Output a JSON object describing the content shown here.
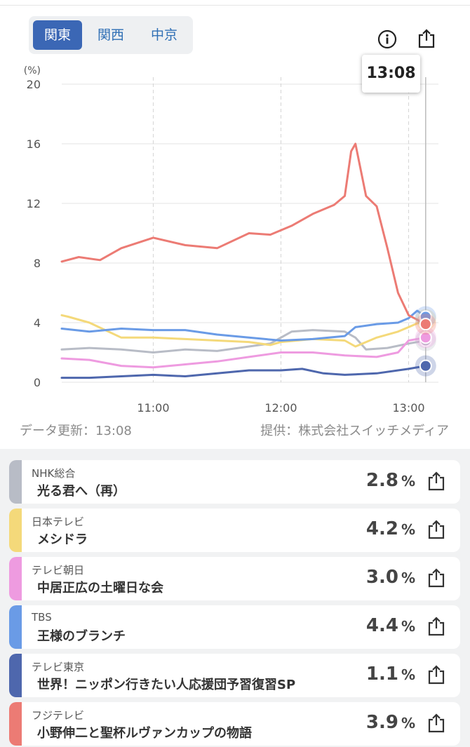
{
  "region_tabs": [
    {
      "label": "関東",
      "active": true
    },
    {
      "label": "関西",
      "active": false
    },
    {
      "label": "中京",
      "active": false
    }
  ],
  "icons": {
    "info": "info-icon",
    "share": "share-icon"
  },
  "tooltip_time": "13:08",
  "footer": {
    "updated": "データ更新：13:08",
    "provider": "提供：株式会社スイッチメディア"
  },
  "chart_data": {
    "type": "line",
    "ylabel": "(%)",
    "ylim": [
      0,
      20
    ],
    "yticks": [
      "0",
      "4",
      "8",
      "12",
      "16",
      "20"
    ],
    "xlim": [
      "10:17",
      "13:14"
    ],
    "xticks": [
      "11:00",
      "12:00",
      "13:00"
    ],
    "grid": true,
    "cursor_time": "13:08",
    "series": [
      {
        "name": "NHK総合",
        "color": "#b8bcc6",
        "x": [
          "10:17",
          "10:30",
          "10:45",
          "11:00",
          "11:15",
          "11:30",
          "11:45",
          "11:55",
          "12:05",
          "12:15",
          "12:30",
          "12:35",
          "12:40",
          "12:50",
          "13:00",
          "13:08"
        ],
        "y": [
          2.2,
          2.3,
          2.2,
          2.0,
          2.2,
          2.1,
          2.4,
          2.6,
          3.4,
          3.5,
          3.4,
          3.0,
          2.2,
          2.3,
          2.6,
          2.8
        ]
      },
      {
        "name": "日本テレビ",
        "color": "#f4d97a",
        "x": [
          "10:17",
          "10:20",
          "10:30",
          "10:45",
          "11:00",
          "11:15",
          "11:30",
          "11:45",
          "11:55",
          "12:00",
          "12:15",
          "12:30",
          "12:35",
          "12:45",
          "12:55",
          "13:00",
          "13:08"
        ],
        "y": [
          4.5,
          4.4,
          4.0,
          3.0,
          3.0,
          2.9,
          2.8,
          2.7,
          2.5,
          2.7,
          2.9,
          2.8,
          2.4,
          3.0,
          3.4,
          3.7,
          4.2
        ]
      },
      {
        "name": "テレビ朝日",
        "color": "#ee9be0",
        "x": [
          "10:17",
          "10:30",
          "10:45",
          "11:00",
          "11:15",
          "11:30",
          "11:45",
          "12:00",
          "12:15",
          "12:30",
          "12:45",
          "12:55",
          "13:00",
          "13:08"
        ],
        "y": [
          1.6,
          1.5,
          1.1,
          1.0,
          1.2,
          1.4,
          1.7,
          2.0,
          2.0,
          1.8,
          1.7,
          2.0,
          2.8,
          3.0
        ]
      },
      {
        "name": "TBS",
        "color": "#6a9be6",
        "x": [
          "10:17",
          "10:30",
          "10:45",
          "11:00",
          "11:15",
          "11:30",
          "11:45",
          "12:00",
          "12:15",
          "12:30",
          "12:35",
          "12:45",
          "12:55",
          "13:00",
          "13:04",
          "13:08"
        ],
        "y": [
          3.6,
          3.4,
          3.6,
          3.5,
          3.5,
          3.2,
          3.0,
          2.8,
          2.9,
          3.1,
          3.7,
          3.9,
          4.0,
          4.3,
          4.8,
          4.4
        ]
      },
      {
        "name": "テレビ東京",
        "color": "#4e67ad",
        "x": [
          "10:17",
          "10:30",
          "10:45",
          "11:00",
          "11:15",
          "11:30",
          "11:45",
          "12:00",
          "12:10",
          "12:20",
          "12:30",
          "12:45",
          "13:00",
          "13:08"
        ],
        "y": [
          0.3,
          0.3,
          0.4,
          0.5,
          0.4,
          0.6,
          0.8,
          0.8,
          0.9,
          0.6,
          0.5,
          0.6,
          0.9,
          1.1
        ]
      },
      {
        "name": "フジテレビ",
        "color": "#ec7b74",
        "x": [
          "10:17",
          "10:25",
          "10:35",
          "10:45",
          "11:00",
          "11:15",
          "11:30",
          "11:45",
          "11:55",
          "12:05",
          "12:15",
          "12:25",
          "12:30",
          "12:33",
          "12:35",
          "12:40",
          "12:45",
          "12:50",
          "12:55",
          "13:00",
          "13:08"
        ],
        "y": [
          8.1,
          8.4,
          8.2,
          9.0,
          9.7,
          9.2,
          9.0,
          10.0,
          9.9,
          10.5,
          11.3,
          11.9,
          12.5,
          15.5,
          16.0,
          12.5,
          11.8,
          9.0,
          6.0,
          4.5,
          3.9
        ]
      }
    ]
  },
  "programs": [
    {
      "station": "NHK総合",
      "title": "光る君へ（再）",
      "rating": "2.8",
      "unit": "%",
      "color": "#b8bcc6"
    },
    {
      "station": "日本テレビ",
      "title": "メシドラ",
      "rating": "4.2",
      "unit": "%",
      "color": "#f4d97a"
    },
    {
      "station": "テレビ朝日",
      "title": "中居正広の土曜日な会",
      "rating": "3.0",
      "unit": "%",
      "color": "#ee9be0"
    },
    {
      "station": "TBS",
      "title": "王様のブランチ",
      "rating": "4.4",
      "unit": "%",
      "color": "#6a9be6"
    },
    {
      "station": "テレビ東京",
      "title": "世界！ニッポン行きたい人応援団予習復習SP",
      "rating": "1.1",
      "unit": "%",
      "color": "#4e67ad"
    },
    {
      "station": "フジテレビ",
      "title": "小野伸二と聖杯ルヴァンカップの物語",
      "rating": "3.9",
      "unit": "%",
      "color": "#ec7b74"
    }
  ]
}
